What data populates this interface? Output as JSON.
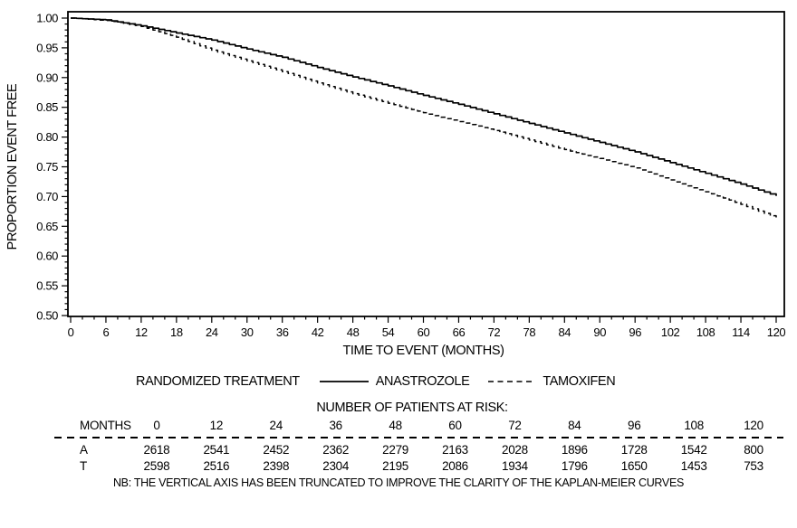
{
  "chart_data": {
    "type": "line",
    "title": "",
    "xlabel": "TIME TO EVENT (MONTHS)",
    "ylabel": "PROPORTION EVENT FREE",
    "xlim": [
      0,
      120
    ],
    "ylim": [
      0.5,
      1.0
    ],
    "x_tick_step": 6,
    "x_minor_step": 2,
    "y_tick_step": 0.05,
    "y_minor_step": 0.01,
    "grid": "off",
    "legend_position": "below",
    "legend_title": "RANDOMIZED TREATMENT",
    "x": [
      0,
      6,
      12,
      18,
      24,
      30,
      36,
      42,
      48,
      54,
      60,
      66,
      72,
      78,
      84,
      90,
      96,
      102,
      108,
      114,
      120
    ],
    "series": [
      {
        "name": "ANASTROZOLE",
        "style": "solid",
        "color": "#000000",
        "values": [
          1.0,
          0.997,
          0.987,
          0.975,
          0.963,
          0.948,
          0.934,
          0.917,
          0.901,
          0.886,
          0.87,
          0.855,
          0.839,
          0.823,
          0.807,
          0.791,
          0.775,
          0.757,
          0.739,
          0.721,
          0.701
        ]
      },
      {
        "name": "TAMOXIFEN",
        "style": "dashed",
        "color": "#000000",
        "values": [
          1.0,
          0.996,
          0.986,
          0.968,
          0.946,
          0.928,
          0.91,
          0.891,
          0.873,
          0.857,
          0.841,
          0.826,
          0.811,
          0.795,
          0.779,
          0.764,
          0.748,
          0.728,
          0.708,
          0.687,
          0.664
        ]
      }
    ],
    "note": "NB: THE VERTICAL AXIS HAS BEEN TRUNCATED TO IMPROVE THE CLARITY OF THE KAPLAN-MEIER CURVES"
  },
  "risk_table": {
    "title": "NUMBER OF PATIENTS AT RISK:",
    "months_label": "MONTHS",
    "months": [
      0,
      12,
      24,
      36,
      48,
      60,
      72,
      84,
      96,
      108,
      120
    ],
    "rows": [
      {
        "label": "A",
        "values": [
          2618,
          2541,
          2452,
          2362,
          2279,
          2163,
          2028,
          1896,
          1728,
          1542,
          800
        ]
      },
      {
        "label": "T",
        "values": [
          2598,
          2516,
          2398,
          2304,
          2195,
          2086,
          1934,
          1796,
          1650,
          1453,
          753
        ]
      }
    ]
  }
}
